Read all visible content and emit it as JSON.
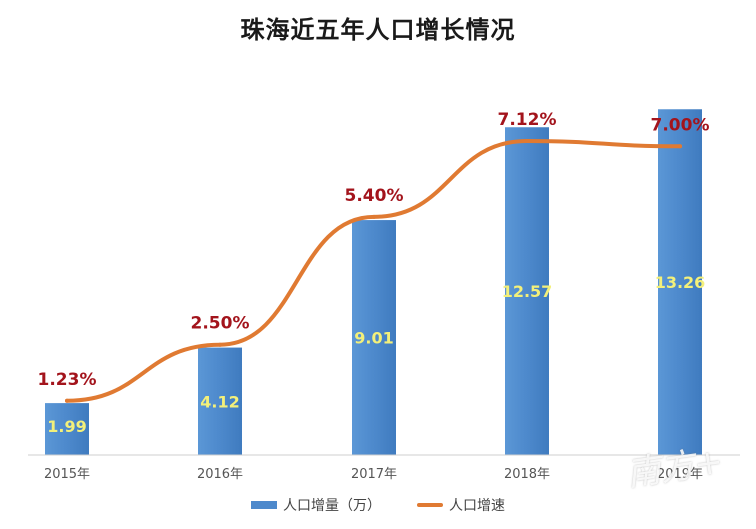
{
  "chart_data": {
    "type": "bar",
    "title": "珠海近五年人口增长情况",
    "categories": [
      "2015年",
      "2016年",
      "2017年",
      "2018年",
      "2019年"
    ],
    "series": [
      {
        "name": "人口增量（万）",
        "type": "bar",
        "values": [
          1.99,
          4.12,
          9.01,
          12.57,
          13.26
        ]
      },
      {
        "name": "人口增速",
        "type": "line",
        "values": [
          1.23,
          2.5,
          5.4,
          7.12,
          7.0
        ],
        "labels": [
          "1.23%",
          "2.50%",
          "5.40%",
          "7.12%",
          "7.00%"
        ]
      }
    ],
    "ylim": [
      0,
      13.5
    ],
    "ylim_line": [
      0,
      7.8
    ],
    "grid": false,
    "legend_position": "bottom",
    "colors": {
      "bar": "#4d89cc",
      "line": "#e07a32",
      "bar_label": "#f3f07a",
      "line_label": "#a3141c"
    }
  },
  "watermark": "南方+"
}
